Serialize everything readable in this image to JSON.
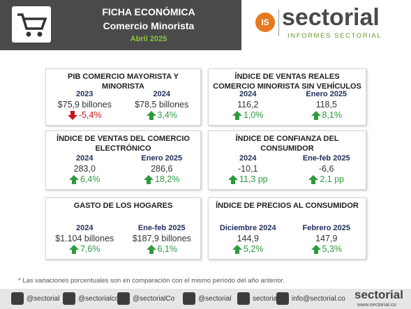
{
  "header": {
    "title": "FICHA ECONÓMICA",
    "subtitle": "Comercio Minorista",
    "date": "Abril 2025"
  },
  "logo": {
    "badge": "IS",
    "name": "sectorial",
    "tagline": "INFORMES SECTORIAL"
  },
  "cards": [
    {
      "title": "PIB COMERCIO MAYORISTA Y MINORISTA",
      "items": [
        {
          "period": "2023",
          "value": "$75,9 billones",
          "change": "-5,4%",
          "trend": "down"
        },
        {
          "period": "2024",
          "value": "$78,5 billones",
          "change": "3,4%",
          "trend": "up"
        }
      ]
    },
    {
      "title": "ÍNDICE DE VENTAS REALES COMERCIO MINORISTA SIN VEHÍCULOS",
      "items": [
        {
          "period": "2024",
          "value": "116,2",
          "change": "1,0%",
          "trend": "up"
        },
        {
          "period": "Enero 2025",
          "value": "118,5",
          "change": "8,1%",
          "trend": "up"
        }
      ]
    },
    {
      "title": "ÍNDICE DE VENTAS DEL COMERCIO ELECTRÓNICO",
      "items": [
        {
          "period": "2024",
          "value": "283,0",
          "change": "6,4%",
          "trend": "up"
        },
        {
          "period": "Enero 2025",
          "value": "286,6",
          "change": "18,2%",
          "trend": "up"
        }
      ]
    },
    {
      "title": "ÍNDICE DE CONFIANZA DEL CONSUMIDOR",
      "items": [
        {
          "period": "2024",
          "value": "-10,1",
          "change": "11,3 pp",
          "trend": "up"
        },
        {
          "period": "Ene-feb 2025",
          "value": "-6,6",
          "change": "2,1 pp",
          "trend": "up"
        }
      ]
    },
    {
      "title": "GASTO DE LOS HOGARES",
      "items": [
        {
          "period": "2024",
          "value": "$1.104 billones",
          "change": "7,6%",
          "trend": "up"
        },
        {
          "period": "Ene-feb 2025",
          "value": "$187,9 billones",
          "change": "6,1%",
          "trend": "up"
        }
      ]
    },
    {
      "title": "ÍNDICE DE PRECIOS AL CONSUMIDOR",
      "items": [
        {
          "period": "Diciembre 2024",
          "value": "144,9",
          "change": "5,2%",
          "trend": "up"
        },
        {
          "period": "Febrero 2025",
          "value": "147,9",
          "change": "5,3%",
          "trend": "up"
        }
      ]
    }
  ],
  "footnote": "* Las variaciones porcentuales son en comparación con el mismo período del año anterior.",
  "footer": {
    "social": [
      "@sectorial",
      "@sectorialco",
      "@sectorialCo",
      "@sectorial",
      "sectorial",
      "info@sectorial.co"
    ],
    "logo": {
      "name": "sectorial",
      "url": "www.sectorial.co"
    }
  }
}
